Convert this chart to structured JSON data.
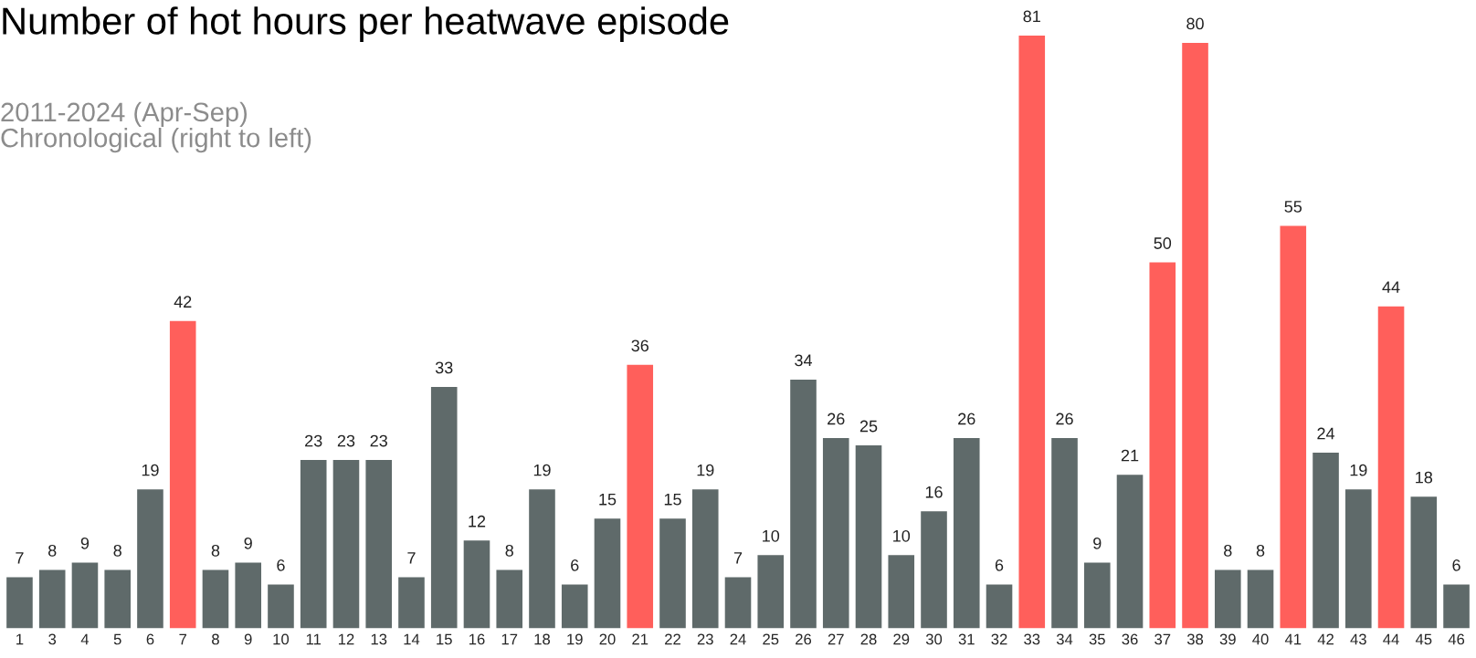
{
  "chart_data": {
    "type": "bar",
    "title": "Number of hot hours per heatwave episode",
    "subtitle": "2011-2024 (Apr-Sep)\nChronological (right to left)",
    "categories": [
      "1",
      "3",
      "4",
      "5",
      "6",
      "7",
      "8",
      "9",
      "10",
      "11",
      "12",
      "13",
      "14",
      "15",
      "16",
      "17",
      "18",
      "19",
      "20",
      "21",
      "22",
      "23",
      "24",
      "25",
      "26",
      "27",
      "28",
      "29",
      "30",
      "31",
      "32",
      "33",
      "34",
      "35",
      "36",
      "37",
      "38",
      "39",
      "40",
      "41",
      "42",
      "43",
      "44",
      "45",
      "46"
    ],
    "values": [
      7,
      8,
      9,
      8,
      19,
      42,
      8,
      9,
      6,
      23,
      23,
      23,
      7,
      33,
      12,
      8,
      19,
      6,
      15,
      36,
      15,
      19,
      7,
      10,
      34,
      26,
      25,
      10,
      16,
      26,
      6,
      81,
      26,
      9,
      21,
      50,
      80,
      8,
      8,
      55,
      24,
      19,
      44,
      18,
      6
    ],
    "colors": [
      "#5f6a6a",
      "#5f6a6a",
      "#5f6a6a",
      "#5f6a6a",
      "#5f6a6a",
      "#ff5f5b",
      "#5f6a6a",
      "#5f6a6a",
      "#5f6a6a",
      "#5f6a6a",
      "#5f6a6a",
      "#5f6a6a",
      "#5f6a6a",
      "#5f6a6a",
      "#5f6a6a",
      "#5f6a6a",
      "#5f6a6a",
      "#5f6a6a",
      "#5f6a6a",
      "#ff5f5b",
      "#5f6a6a",
      "#5f6a6a",
      "#5f6a6a",
      "#5f6a6a",
      "#5f6a6a",
      "#5f6a6a",
      "#5f6a6a",
      "#5f6a6a",
      "#5f6a6a",
      "#5f6a6a",
      "#5f6a6a",
      "#ff5f5b",
      "#5f6a6a",
      "#5f6a6a",
      "#5f6a6a",
      "#ff5f5b",
      "#ff5f5b",
      "#5f6a6a",
      "#5f6a6a",
      "#ff5f5b",
      "#5f6a6a",
      "#5f6a6a",
      "#ff5f5b",
      "#5f6a6a",
      "#5f6a6a"
    ],
    "data_labels": true,
    "grid": false,
    "legend": false
  }
}
